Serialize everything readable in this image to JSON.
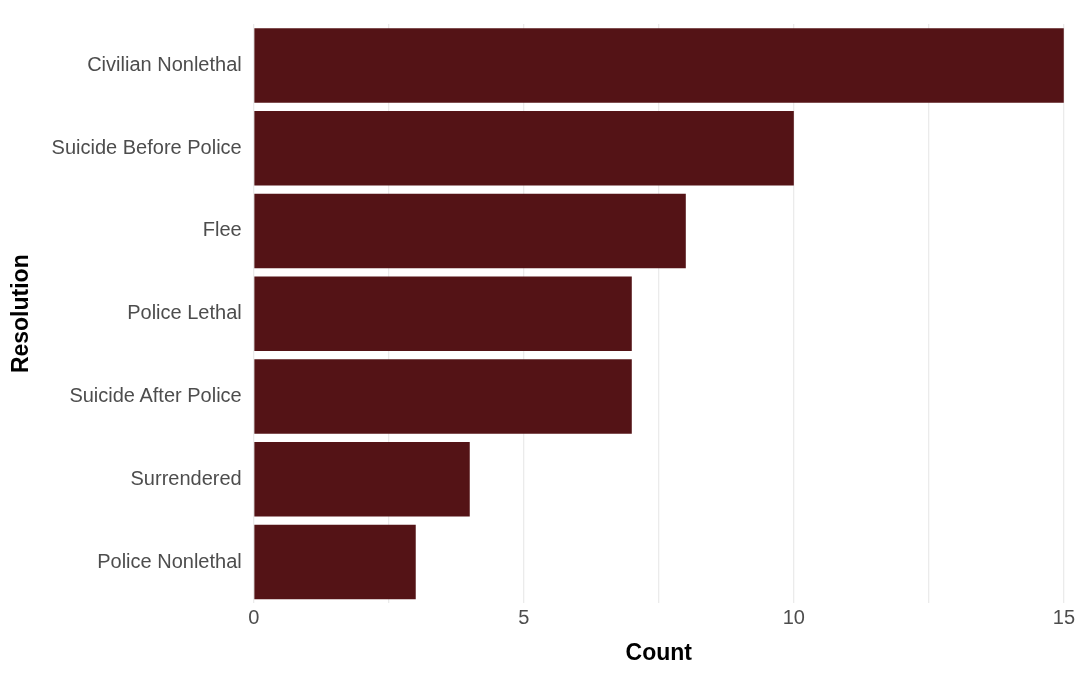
{
  "chart_data": {
    "type": "bar",
    "orientation": "horizontal",
    "xlabel": "Count",
    "ylabel": "Resolution",
    "categories": [
      "Civilian Nonlethal",
      "Suicide Before Police",
      "Flee",
      "Police Lethal",
      "Suicide After Police",
      "Surrendered",
      "Police Nonlethal"
    ],
    "values": [
      15,
      10,
      8,
      7,
      7,
      4,
      3
    ],
    "color": "#541316",
    "xlim": [
      0,
      15
    ],
    "xticks": [
      0,
      {
        "value": 2.5,
        "label": null
      },
      5,
      {
        "value": 7.5,
        "label": null
      },
      10,
      {
        "value": 12.5,
        "label": null
      },
      15
    ],
    "grid": "x",
    "legend": false
  }
}
